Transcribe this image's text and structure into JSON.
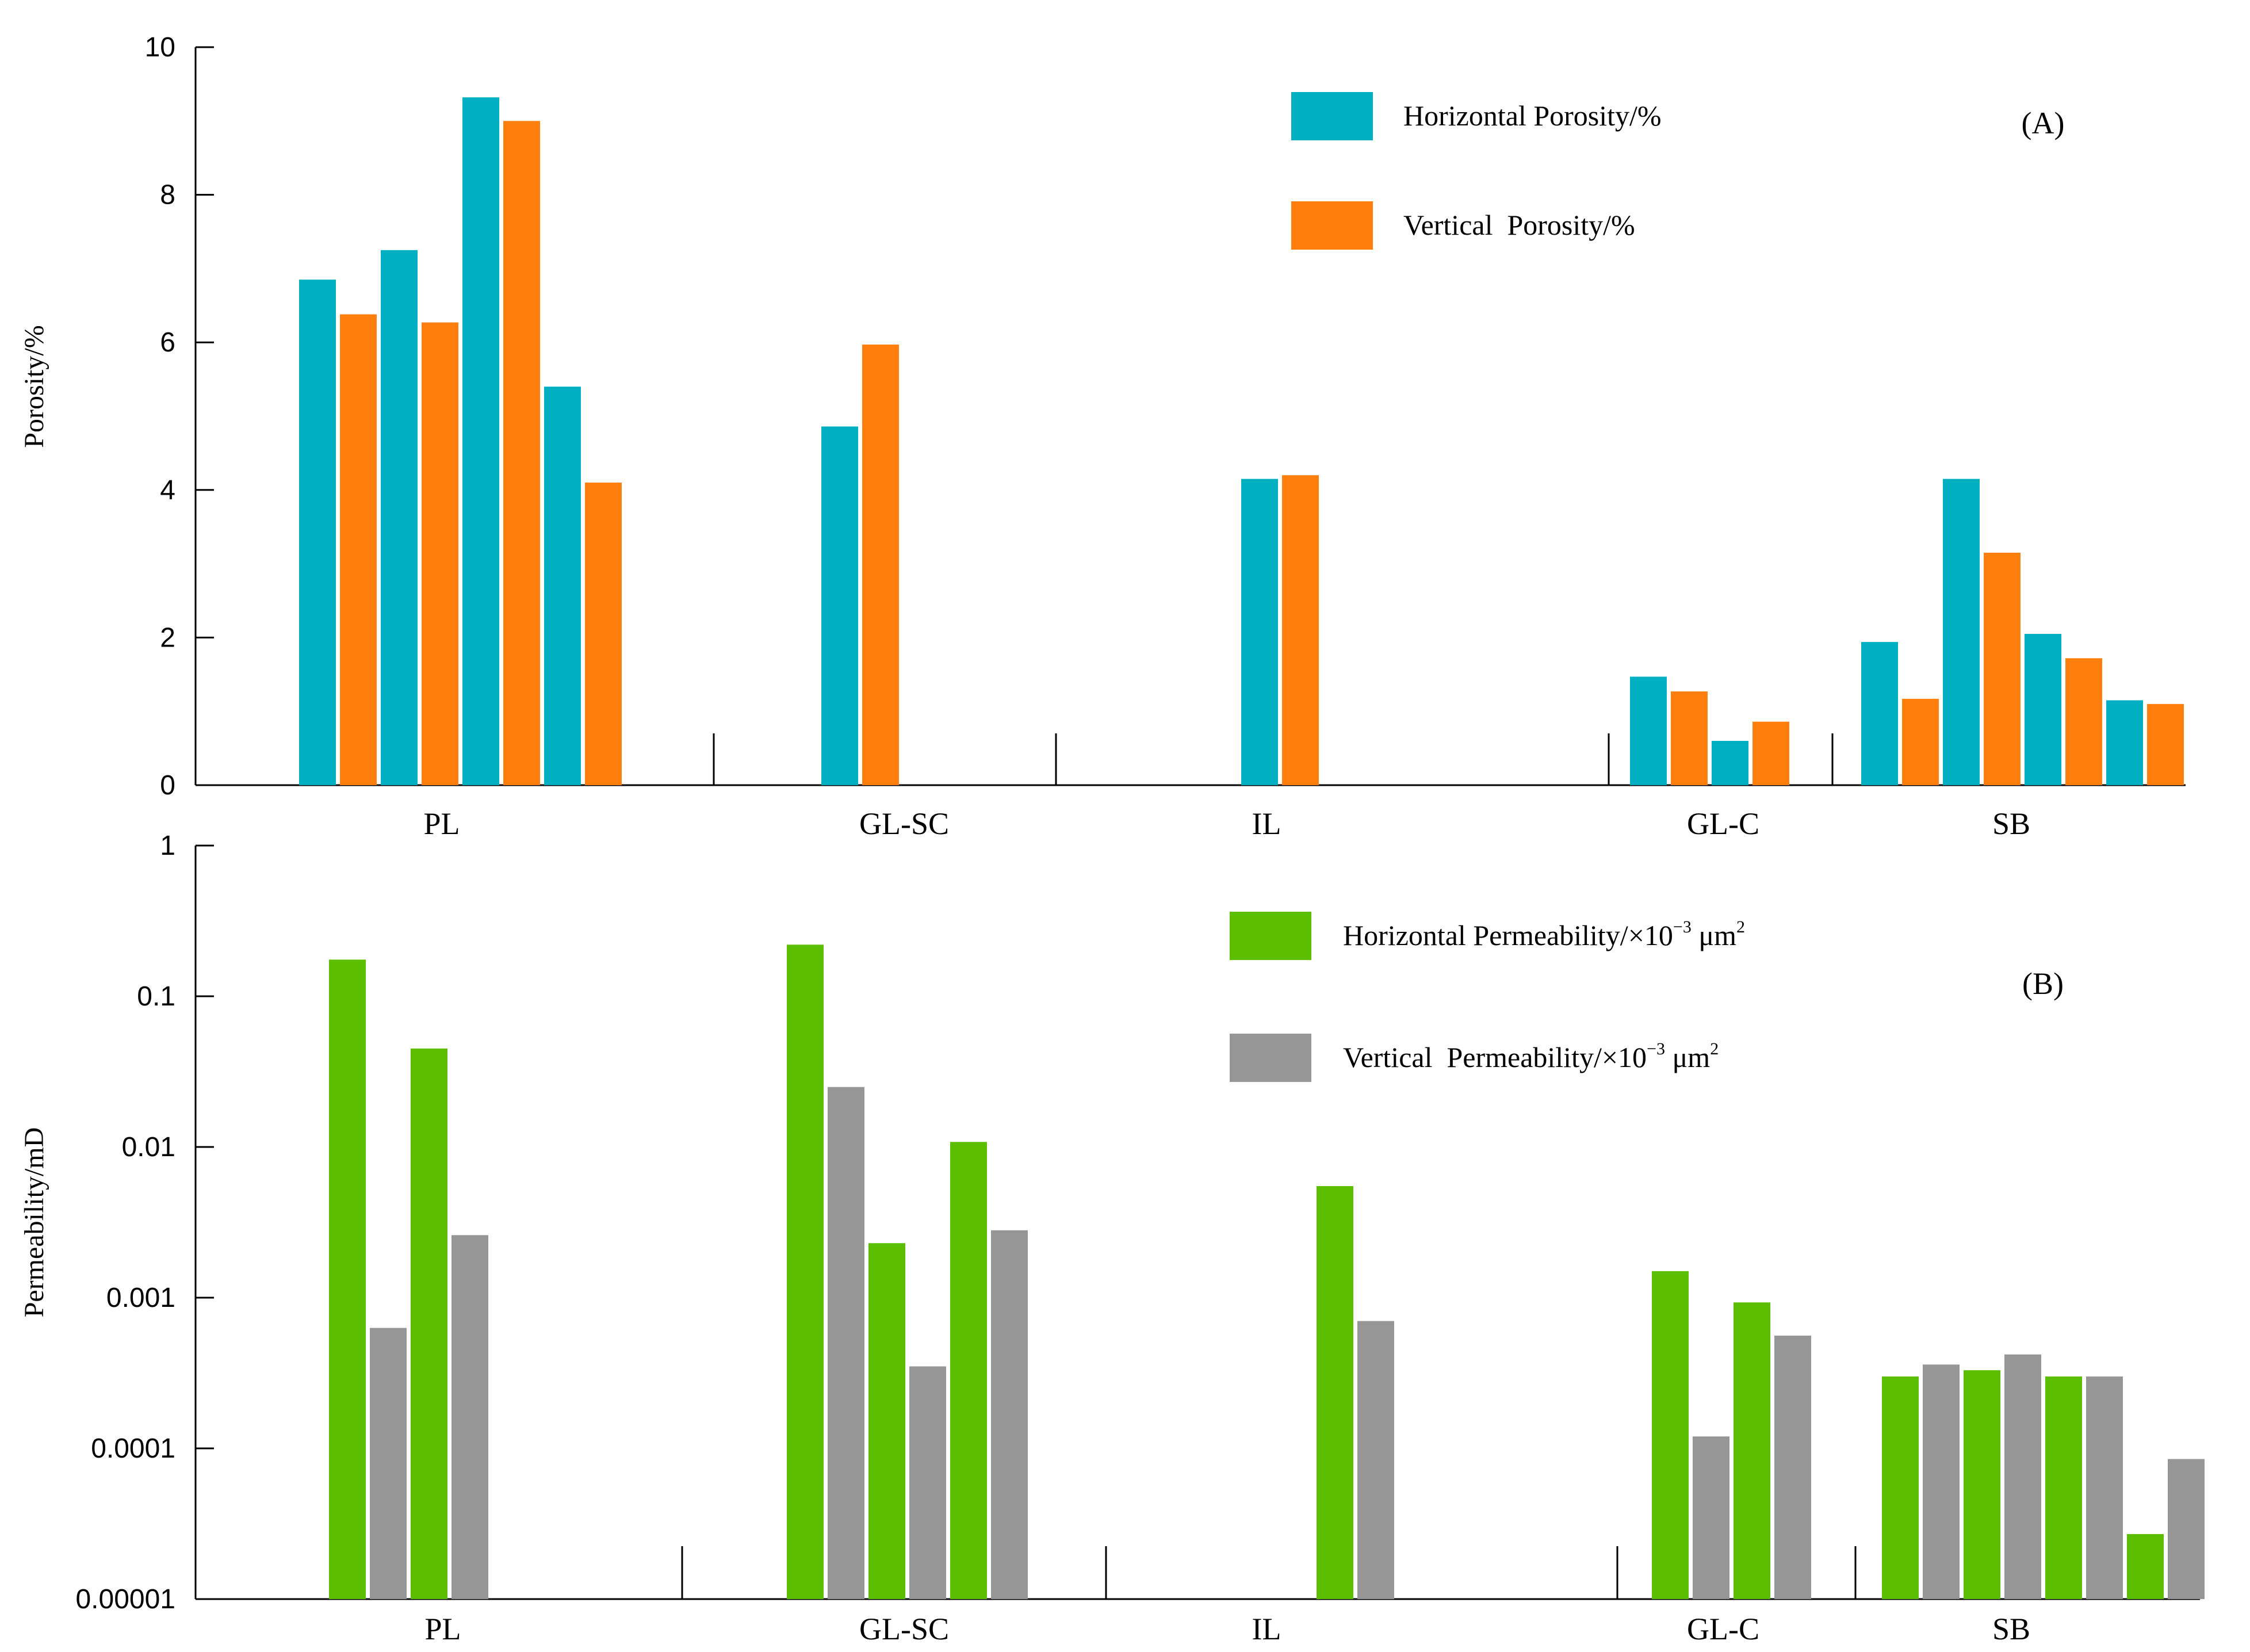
{
  "chart_data": [
    {
      "panel_label": "(A)",
      "type": "bar",
      "scale": "linear",
      "ylabel": "Porosity/%",
      "ylim": [
        0,
        10
      ],
      "yticks": [
        "0",
        "2",
        "4",
        "6",
        "8",
        "10"
      ],
      "groups": [
        "PL",
        "GL-SC",
        "IL",
        "GL-C",
        "SB"
      ],
      "series": [
        {
          "name": "Horizontal Porosity/%",
          "color": "#00b0c2"
        },
        {
          "name": "Vertical  Porosity/%",
          "color": "#ff7f0e"
        }
      ],
      "bars": {
        "PL": [
          {
            "series": 0,
            "value": 6.85
          },
          {
            "series": 1,
            "value": 6.38
          },
          {
            "series": 0,
            "value": 7.25
          },
          {
            "series": 1,
            "value": 6.27
          },
          {
            "series": 0,
            "value": 9.32
          },
          {
            "series": 1,
            "value": 9.0
          },
          {
            "series": 0,
            "value": 5.4
          },
          {
            "series": 1,
            "value": 4.1
          }
        ],
        "GL-SC": [
          {
            "series": 0,
            "value": 4.86
          },
          {
            "series": 1,
            "value": 5.97
          }
        ],
        "IL": [
          {
            "series": 0,
            "value": 4.15
          },
          {
            "series": 1,
            "value": 4.2
          }
        ],
        "GL-C": [
          {
            "series": 0,
            "value": 1.47
          },
          {
            "series": 1,
            "value": 1.27
          },
          {
            "series": 0,
            "value": 0.6
          },
          {
            "series": 1,
            "value": 0.86
          }
        ],
        "SB": [
          {
            "series": 0,
            "value": 1.94
          },
          {
            "series": 1,
            "value": 1.17
          },
          {
            "series": 0,
            "value": 4.15
          },
          {
            "series": 1,
            "value": 3.15
          },
          {
            "series": 0,
            "value": 2.05
          },
          {
            "series": 1,
            "value": 1.72
          },
          {
            "series": 0,
            "value": 1.15
          },
          {
            "series": 1,
            "value": 1.1
          }
        ]
      },
      "grid": false,
      "legend_position": "top-right"
    },
    {
      "panel_label": "(B)",
      "type": "bar",
      "scale": "log",
      "ylabel": "Permeability/mD",
      "ylim": [
        1e-05,
        1
      ],
      "yticks": [
        "0.00001",
        "0.0001",
        "0.001",
        "0.01",
        "0.1",
        "1"
      ],
      "groups": [
        "PL",
        "GL-SC",
        "IL",
        "GL-C",
        "SB"
      ],
      "series": [
        {
          "name": "Horizontal Permeability/×10",
          "unit_exp": "−3",
          "unit": " μm",
          "unit_sup": "2",
          "color": "#5bbf00"
        },
        {
          "name": "Vertical  Permeability/×10",
          "unit_exp": "−3",
          "unit": " μm",
          "unit_sup": "2",
          "color": "#969696"
        }
      ],
      "bars": {
        "PL": [
          {
            "series": 0,
            "value": 0.175
          },
          {
            "series": 1,
            "value": 0.00063
          },
          {
            "series": 0,
            "value": 0.045
          },
          {
            "series": 1,
            "value": 0.0026
          }
        ],
        "GL-SC": [
          {
            "series": 0,
            "value": 0.22
          },
          {
            "series": 1,
            "value": 0.025
          },
          {
            "series": 0,
            "value": 0.0023
          },
          {
            "series": 1,
            "value": 0.00035
          },
          {
            "series": 0,
            "value": 0.0108
          },
          {
            "series": 1,
            "value": 0.0028
          }
        ],
        "IL": [
          {
            "series": 0,
            "value": 0.0055
          },
          {
            "series": 1,
            "value": 0.0007
          }
        ],
        "GL-C": [
          {
            "series": 0,
            "value": 0.0015
          },
          {
            "series": 1,
            "value": 0.00012
          },
          {
            "series": 0,
            "value": 0.00093
          },
          {
            "series": 1,
            "value": 0.00056
          }
        ],
        "SB": [
          {
            "series": 0,
            "value": 0.0003
          },
          {
            "series": 1,
            "value": 0.00036
          },
          {
            "series": 0,
            "value": 0.00033
          },
          {
            "series": 1,
            "value": 0.00042
          },
          {
            "series": 0,
            "value": 0.0003
          },
          {
            "series": 1,
            "value": 0.0003
          },
          {
            "series": 0,
            "value": 2.7e-05
          },
          {
            "series": 1,
            "value": 8.5e-05
          }
        ]
      },
      "grid": false,
      "legend_position": "top-right"
    }
  ]
}
